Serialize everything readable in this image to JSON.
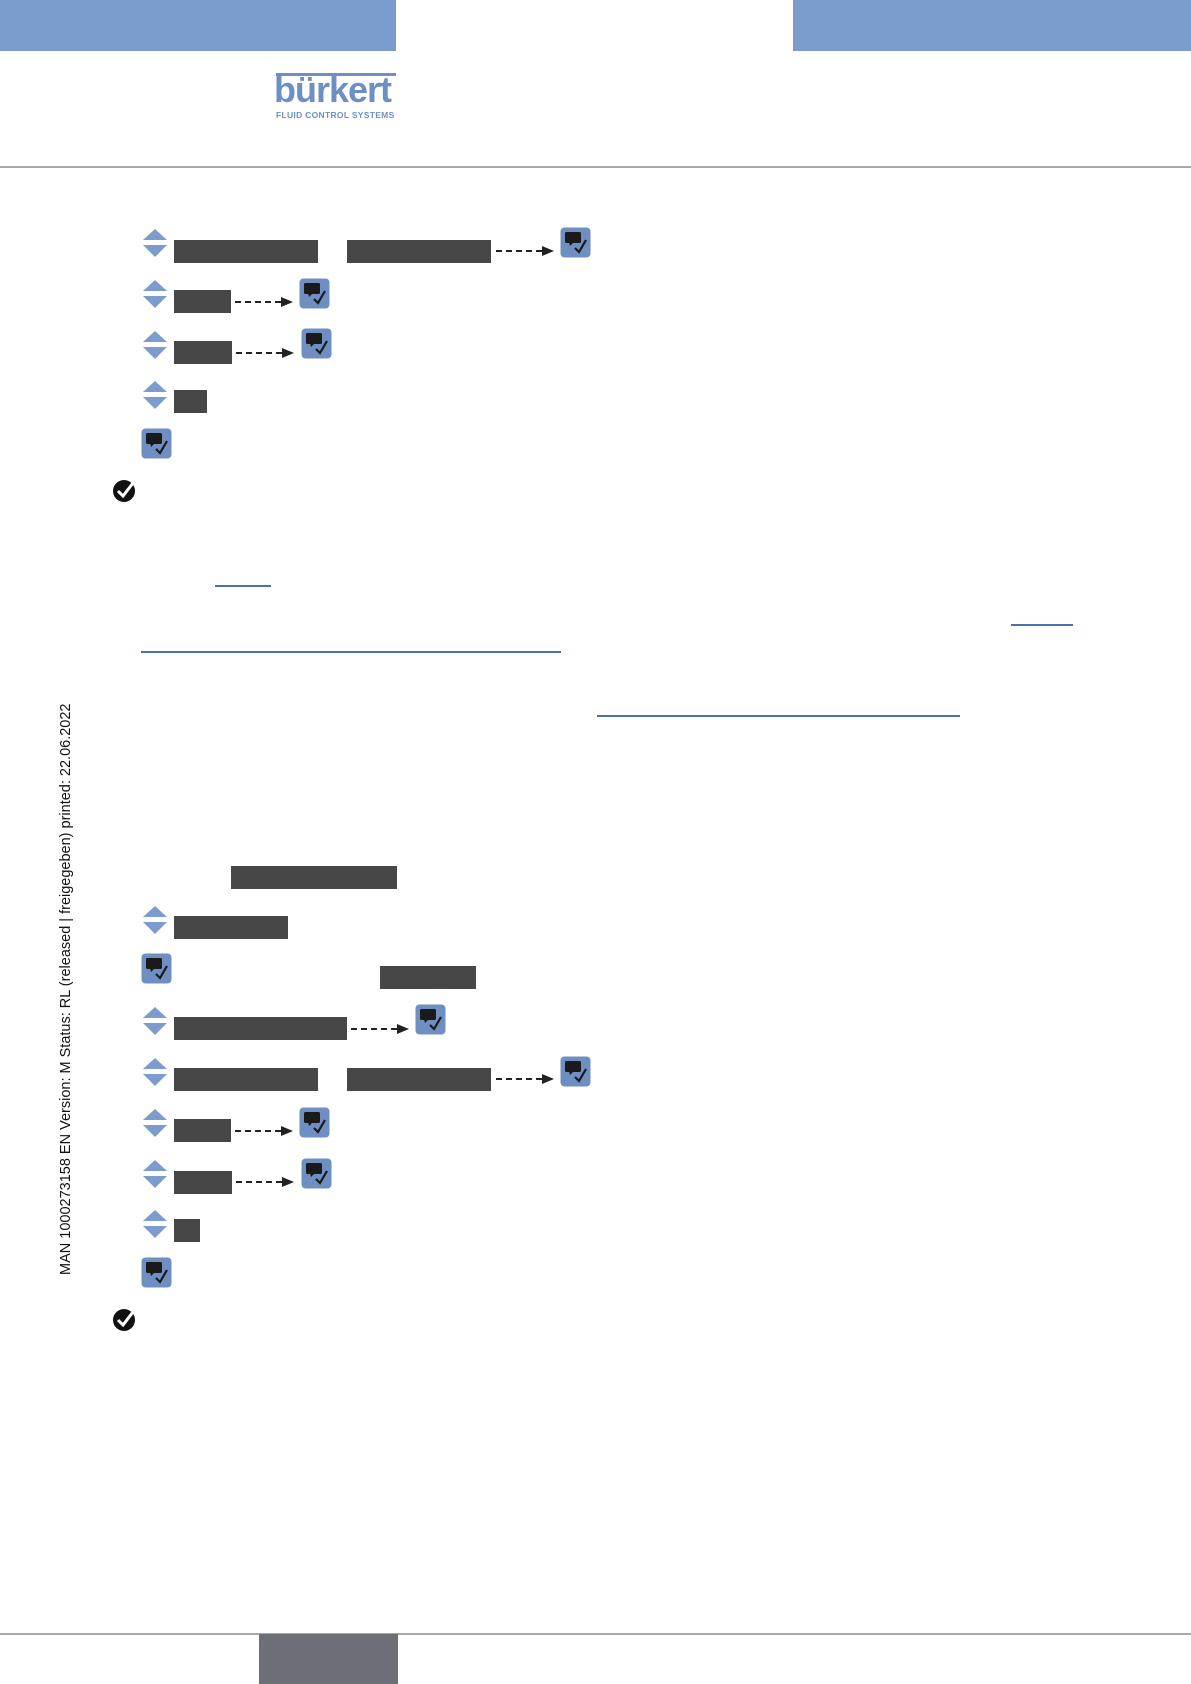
{
  "header": {
    "brand_name": "bürkert",
    "brand_tagline": "FLUID CONTROL SYSTEMS",
    "colors": {
      "band": "#7b9ccc",
      "brand": "#6e8fc4",
      "rule": "#a8a8a8",
      "footer_tab": "#6c6f75"
    }
  },
  "sidebar": {
    "doc_info": "MAN  1000273158  EN  Version: M Status: RL (released | freigegeben)  printed: 22.06.2022"
  },
  "icons": {
    "up_down": "up-down-arrow-icon",
    "ok": "ok-button-icon",
    "done": "check-circle-icon",
    "dashed_arrow": "dashed-arrow-icon"
  },
  "colors": {
    "redacted_box": "#474747",
    "arrow_fill": "#7b9ccc",
    "button_fill": "#6f8fc2",
    "link": "#4d70b0"
  }
}
